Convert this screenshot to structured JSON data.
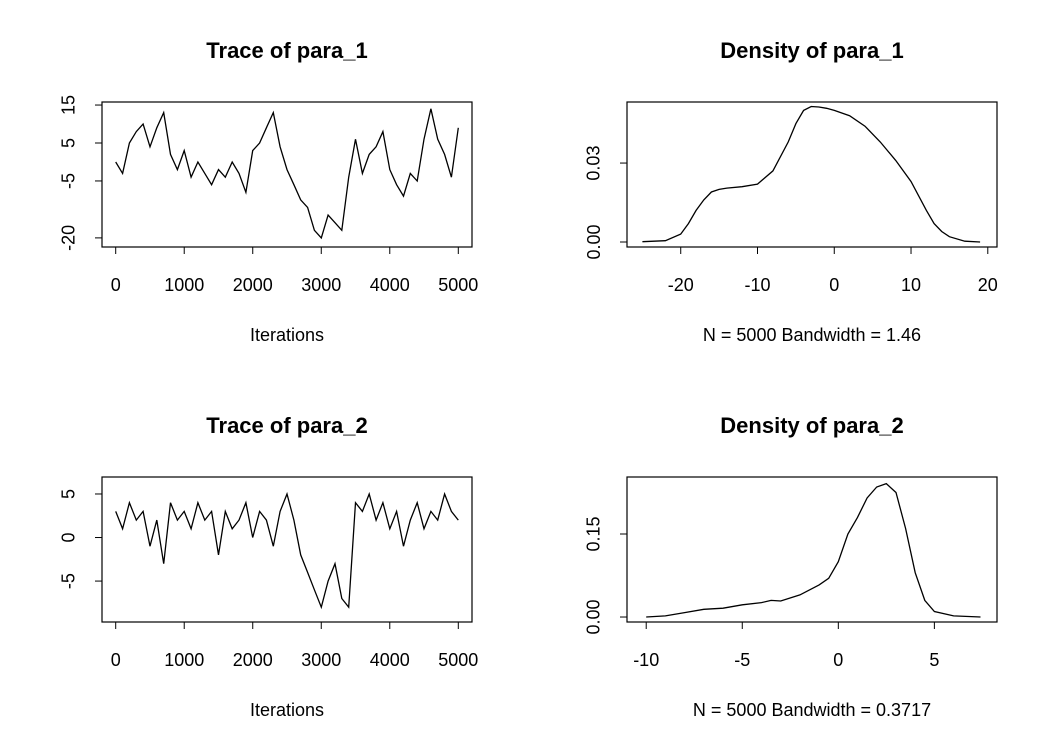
{
  "chart_data": [
    {
      "type": "line",
      "title": "Trace of para_1",
      "x_label": "Iterations",
      "x": [
        0,
        100,
        200,
        300,
        400,
        500,
        600,
        700,
        800,
        900,
        1000,
        1100,
        1200,
        1300,
        1400,
        1500,
        1600,
        1700,
        1800,
        1900,
        2000,
        2100,
        2200,
        2300,
        2400,
        2500,
        2600,
        2700,
        2800,
        2900,
        3000,
        3100,
        3200,
        3300,
        3400,
        3500,
        3600,
        3700,
        3800,
        3900,
        4000,
        4100,
        4200,
        4300,
        4400,
        4500,
        4600,
        4700,
        4800,
        4900,
        5000
      ],
      "values": [
        0,
        -3,
        5,
        8,
        10,
        4,
        9,
        13,
        2,
        -2,
        3,
        -4,
        0,
        -3,
        -6,
        -2,
        -4,
        0,
        -3,
        -8,
        3,
        5,
        9,
        13,
        4,
        -2,
        -6,
        -10,
        -12,
        -18,
        -20,
        -14,
        -16,
        -18,
        -4,
        6,
        -3,
        2,
        4,
        8,
        -2,
        -6,
        -9,
        -3,
        -5,
        6,
        14,
        6,
        2,
        -4,
        9
      ],
      "color": "#000000",
      "xlim": [
        -200,
        5200
      ],
      "ylim": [
        -22.4,
        15.8
      ],
      "xticks": [
        0,
        1000,
        2000,
        3000,
        4000,
        5000
      ],
      "yticks": [
        -20,
        -5,
        5,
        15
      ]
    },
    {
      "type": "line",
      "title": "Density of para_1",
      "x_label": "N = 5000   Bandwidth = 1.46",
      "x": [
        -25,
        -22,
        -20,
        -19,
        -18,
        -17,
        -16,
        -15,
        -14,
        -12,
        -10,
        -8,
        -6,
        -5,
        -4,
        -3,
        -2,
        -1,
        0,
        2,
        4,
        6,
        8,
        10,
        12,
        13,
        14,
        15,
        17,
        19
      ],
      "values": [
        0.0001,
        0.0005,
        0.003,
        0.007,
        0.012,
        0.016,
        0.019,
        0.02,
        0.0205,
        0.021,
        0.022,
        0.027,
        0.038,
        0.045,
        0.05,
        0.0515,
        0.0513,
        0.0508,
        0.05,
        0.048,
        0.044,
        0.038,
        0.031,
        0.023,
        0.012,
        0.007,
        0.004,
        0.002,
        0.0003,
        0
      ],
      "color": "#000000",
      "xlim": [
        -27,
        21.2
      ],
      "ylim": [
        -0.0019,
        0.0532
      ],
      "xticks": [
        -20,
        -10,
        0,
        10,
        20
      ],
      "yticks": [
        {
          "value": 0,
          "label": "0.00"
        },
        {
          "value": 0.03,
          "label": "0.03"
        }
      ]
    },
    {
      "type": "line",
      "title": "Trace of para_2",
      "x_label": "Iterations",
      "x": [
        0,
        100,
        200,
        300,
        400,
        500,
        600,
        700,
        800,
        900,
        1000,
        1100,
        1200,
        1300,
        1400,
        1500,
        1600,
        1700,
        1800,
        1900,
        2000,
        2100,
        2200,
        2300,
        2400,
        2500,
        2600,
        2700,
        2800,
        2900,
        3000,
        3100,
        3200,
        3300,
        3400,
        3500,
        3600,
        3700,
        3800,
        3900,
        4000,
        4100,
        4200,
        4300,
        4400,
        4500,
        4600,
        4700,
        4800,
        4900,
        5000
      ],
      "values": [
        3,
        1,
        4,
        2,
        3,
        -1,
        2,
        -3,
        4,
        2,
        3,
        1,
        4,
        2,
        3,
        -2,
        3,
        1,
        2,
        4,
        0,
        3,
        2,
        -1,
        3,
        5,
        2,
        -2,
        -4,
        -6,
        -8,
        -5,
        -3,
        -7,
        -8,
        4,
        3,
        5,
        2,
        4,
        1,
        3,
        -1,
        2,
        4,
        1,
        3,
        2,
        5,
        3,
        2
      ],
      "color": "#000000",
      "xlim": [
        -200,
        5200
      ],
      "ylim": [
        -9.7,
        6.95
      ],
      "xticks": [
        0,
        1000,
        2000,
        3000,
        4000,
        5000
      ],
      "yticks": [
        -5,
        0,
        5
      ]
    },
    {
      "type": "line",
      "title": "Density of para_2",
      "x_label": "N = 5000   Bandwidth = 0.3717",
      "x": [
        -10,
        -9,
        -8,
        -7,
        -6,
        -5,
        -4,
        -3.5,
        -3,
        -2,
        -1,
        -0.5,
        0,
        0.5,
        1,
        1.5,
        2,
        2.5,
        3,
        3.5,
        4,
        4.5,
        5,
        6,
        7.4
      ],
      "values": [
        0,
        0.002,
        0.008,
        0.014,
        0.016,
        0.022,
        0.026,
        0.03,
        0.029,
        0.04,
        0.058,
        0.07,
        0.1,
        0.15,
        0.18,
        0.215,
        0.235,
        0.241,
        0.225,
        0.16,
        0.08,
        0.03,
        0.01,
        0.002,
        0
      ],
      "color": "#000000",
      "xlim": [
        -11,
        8.26
      ],
      "ylim": [
        -0.009,
        0.253
      ],
      "xticks": [
        -10,
        -5,
        0,
        5
      ],
      "yticks": [
        {
          "value": 0,
          "label": "0.00"
        },
        {
          "value": 0.15,
          "label": "0.15"
        }
      ]
    }
  ]
}
